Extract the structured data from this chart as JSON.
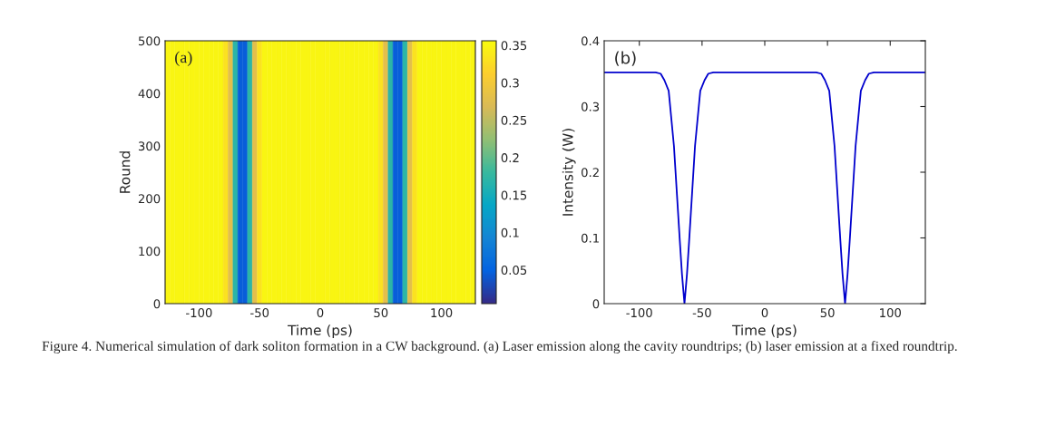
{
  "chart_data": [
    {
      "type": "heatmap",
      "xlabel": "Time (ps)",
      "ylabel": "Round",
      "x": [
        -126,
        -122,
        -118,
        -114,
        -110,
        -106,
        -102,
        -98,
        -94,
        -90,
        -86,
        -82,
        -78,
        -74,
        -70,
        -66,
        -62,
        -58,
        -54,
        -50,
        -46,
        -42,
        -38,
        -34,
        -30,
        -26,
        -22,
        -18,
        -14,
        -10,
        -6,
        -2,
        2,
        6,
        10,
        14,
        18,
        22,
        26,
        30,
        34,
        38,
        42,
        46,
        50,
        54,
        58,
        62,
        66,
        70,
        74,
        78,
        82,
        86,
        90,
        94,
        98,
        102,
        106,
        110,
        114,
        118,
        122,
        126
      ],
      "cells": [
        [
          0.35,
          0.35,
          0.35,
          0.35,
          0.35,
          0.35,
          0.35,
          0.35,
          0.35,
          0.35,
          0.35,
          0.35,
          0.33,
          0.28,
          0.17,
          0.045,
          0.045,
          0.17,
          0.28,
          0.33,
          0.35,
          0.35,
          0.35,
          0.35,
          0.35,
          0.35,
          0.35,
          0.35,
          0.35,
          0.35,
          0.35,
          0.35,
          0.35,
          0.35,
          0.35,
          0.35,
          0.35,
          0.35,
          0.35,
          0.35,
          0.35,
          0.35,
          0.35,
          0.35,
          0.33,
          0.28,
          0.17,
          0.045,
          0.045,
          0.17,
          0.28,
          0.33,
          0.35,
          0.35,
          0.35,
          0.35,
          0.35,
          0.35,
          0.35,
          0.35,
          0.35,
          0.35,
          0.35,
          0.35
        ]
      ],
      "xlim": [
        -128,
        128
      ],
      "xticks": [
        -100,
        -50,
        0,
        50,
        100
      ],
      "ylim": [
        0,
        500
      ],
      "yticks": [
        0,
        100,
        200,
        300,
        400,
        500
      ],
      "clim": [
        0.005,
        0.356
      ],
      "cticks": [
        0.05,
        0.1,
        0.15,
        0.2,
        0.25,
        0.3,
        0.35
      ],
      "annotations": [
        "(a)"
      ]
    },
    {
      "type": "line",
      "xlabel": "Time (ps)",
      "ylabel": "Intensity (W)",
      "x": [
        -128,
        -90,
        -87,
        -83,
        -80,
        -76.6,
        -72.4,
        -67.7,
        -66,
        -64,
        -62,
        -60.3,
        -55.6,
        -51.4,
        -48,
        -45,
        -41,
        41,
        45,
        48,
        51.4,
        55.6,
        60.3,
        62,
        64,
        66,
        67.7,
        72.4,
        76.6,
        80,
        83,
        87,
        128
      ],
      "series": [
        {
          "color": "#0000cd",
          "values": [
            0.352,
            0.352,
            0.352,
            0.35,
            0.34,
            0.324,
            0.24,
            0.095,
            0.045,
            0,
            0.045,
            0.095,
            0.24,
            0.324,
            0.34,
            0.35,
            0.352,
            0.352,
            0.35,
            0.34,
            0.324,
            0.24,
            0.095,
            0.045,
            0,
            0.045,
            0.095,
            0.24,
            0.324,
            0.34,
            0.35,
            0.352,
            0.352
          ]
        }
      ],
      "xlim": [
        -128,
        128
      ],
      "xticks": [
        -100,
        -50,
        0,
        50,
        100
      ],
      "ylim": [
        0,
        0.4
      ],
      "yticks": [
        0,
        0.1,
        0.2,
        0.3,
        0.4
      ],
      "grid": false,
      "annotations": [
        "(b)",
        "Figure 4. Numerical simulation of dark soliton formation in a CW background. (a) Laser emission along the cavity roundtrips; (b) laser emission at a fixed roundtrip."
      ]
    }
  ]
}
